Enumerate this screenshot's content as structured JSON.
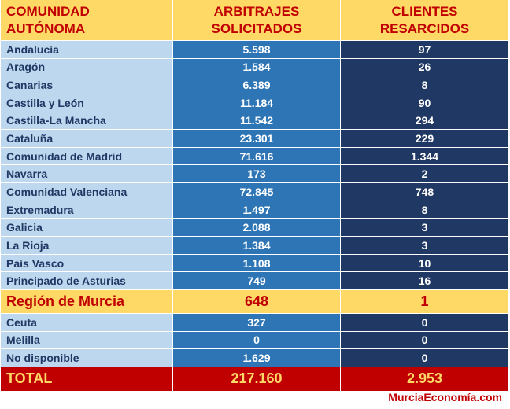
{
  "header": {
    "col1_line1": "COMUNIDAD",
    "col1_line2": "AUTÓNOMA",
    "col2_line1": "ARBITRAJES",
    "col2_line2": "SOLICITADOS",
    "col3_line1": "CLIENTES",
    "col3_line2": "RESARCIDOS"
  },
  "rows_top": [
    {
      "region": "Andalucía",
      "arbitrajes": "5.598",
      "clientes": "97"
    },
    {
      "region": "Aragón",
      "arbitrajes": "1.584",
      "clientes": "26"
    },
    {
      "region": "Canarias",
      "arbitrajes": "6.389",
      "clientes": "8"
    },
    {
      "region": "Castilla y León",
      "arbitrajes": "11.184",
      "clientes": "90"
    },
    {
      "region": "Castilla-La Mancha",
      "arbitrajes": "11.542",
      "clientes": "294"
    },
    {
      "region": "Cataluña",
      "arbitrajes": "23.301",
      "clientes": "229"
    },
    {
      "region": "Comunidad de Madrid",
      "arbitrajes": "71.616",
      "clientes": "1.344"
    },
    {
      "region": "Navarra",
      "arbitrajes": "173",
      "clientes": "2"
    },
    {
      "region": "Comunidad Valenciana",
      "arbitrajes": "72.845",
      "clientes": "748"
    },
    {
      "region": "Extremadura",
      "arbitrajes": "1.497",
      "clientes": "8"
    },
    {
      "region": "Galicia",
      "arbitrajes": "2.088",
      "clientes": "3"
    },
    {
      "region": "La Rioja",
      "arbitrajes": "1.384",
      "clientes": "3"
    },
    {
      "region": "País Vasco",
      "arbitrajes": "1.108",
      "clientes": "10"
    },
    {
      "region": "Principado de Asturias",
      "arbitrajes": "749",
      "clientes": "16"
    }
  ],
  "highlight": {
    "region": "Región de Murcia",
    "arbitrajes": "648",
    "clientes": "1"
  },
  "rows_bottom": [
    {
      "region": "Ceuta",
      "arbitrajes": "327",
      "clientes": "0"
    },
    {
      "region": "Melilla",
      "arbitrajes": "0",
      "clientes": "0"
    },
    {
      "region": "No disponible",
      "arbitrajes": "1.629",
      "clientes": "0"
    }
  ],
  "total": {
    "label": "TOTAL",
    "arbitrajes": "217.160",
    "clientes": "2.953"
  },
  "footer": "MurciaEconomía.com",
  "colors": {
    "header_bg": "#ffd966",
    "header_text": "#c00000",
    "region_bg": "#bdd7ee",
    "arbitrajes_bg": "#2e75b6",
    "clientes_bg": "#203864",
    "total_bg": "#c00000",
    "total_text": "#ffd966"
  }
}
